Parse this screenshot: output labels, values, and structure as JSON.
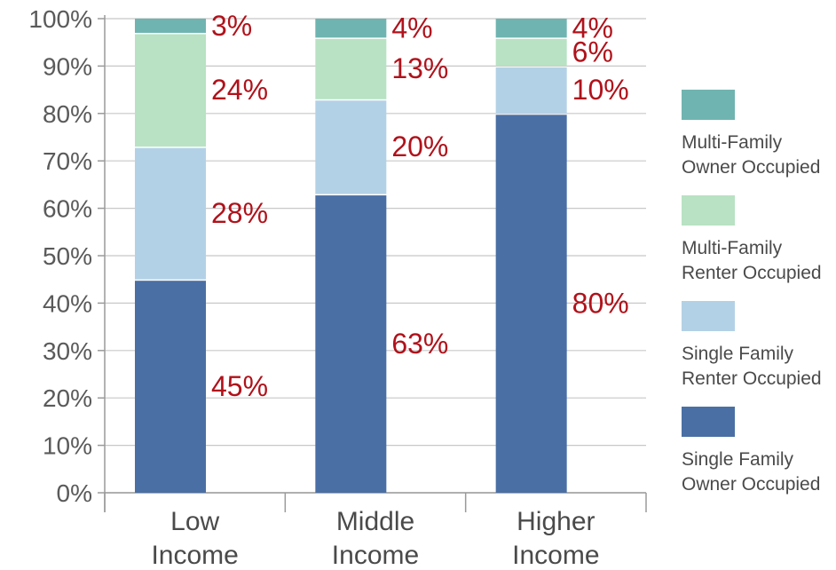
{
  "chart_data": {
    "type": "bar",
    "stacked": true,
    "categories": [
      [
        "Low",
        "Income"
      ],
      [
        "Middle",
        "Income"
      ],
      [
        "Higher",
        "Income"
      ]
    ],
    "series": [
      {
        "name": [
          "Single Family",
          "Owner Occupied"
        ],
        "color": "#4a6fa5",
        "values": [
          45,
          63,
          80
        ],
        "labels": [
          "45%",
          "63%",
          "80%"
        ]
      },
      {
        "name": [
          "Single Family",
          "Renter Occupied"
        ],
        "color": "#b3d1e6",
        "values": [
          28,
          20,
          10
        ],
        "labels": [
          "28%",
          "20%",
          "10%"
        ]
      },
      {
        "name": [
          "Multi-Family",
          "Renter Occupied"
        ],
        "color": "#b8e2c3",
        "values": [
          24,
          13,
          6
        ],
        "labels": [
          "24%",
          "13%",
          "6%"
        ]
      },
      {
        "name": [
          "Multi-Family",
          "Owner Occupied"
        ],
        "color": "#6fb4b0",
        "values": [
          3,
          4,
          4
        ],
        "labels": [
          "3%",
          "4%",
          "4%"
        ]
      }
    ],
    "ylim": [
      0,
      100
    ],
    "yticks": [
      "0%",
      "10%",
      "20%",
      "30%",
      "40%",
      "50%",
      "60%",
      "70%",
      "80%",
      "90%",
      "100%"
    ],
    "grid": true,
    "legend_position": "right",
    "label_color": "#b0121b"
  }
}
